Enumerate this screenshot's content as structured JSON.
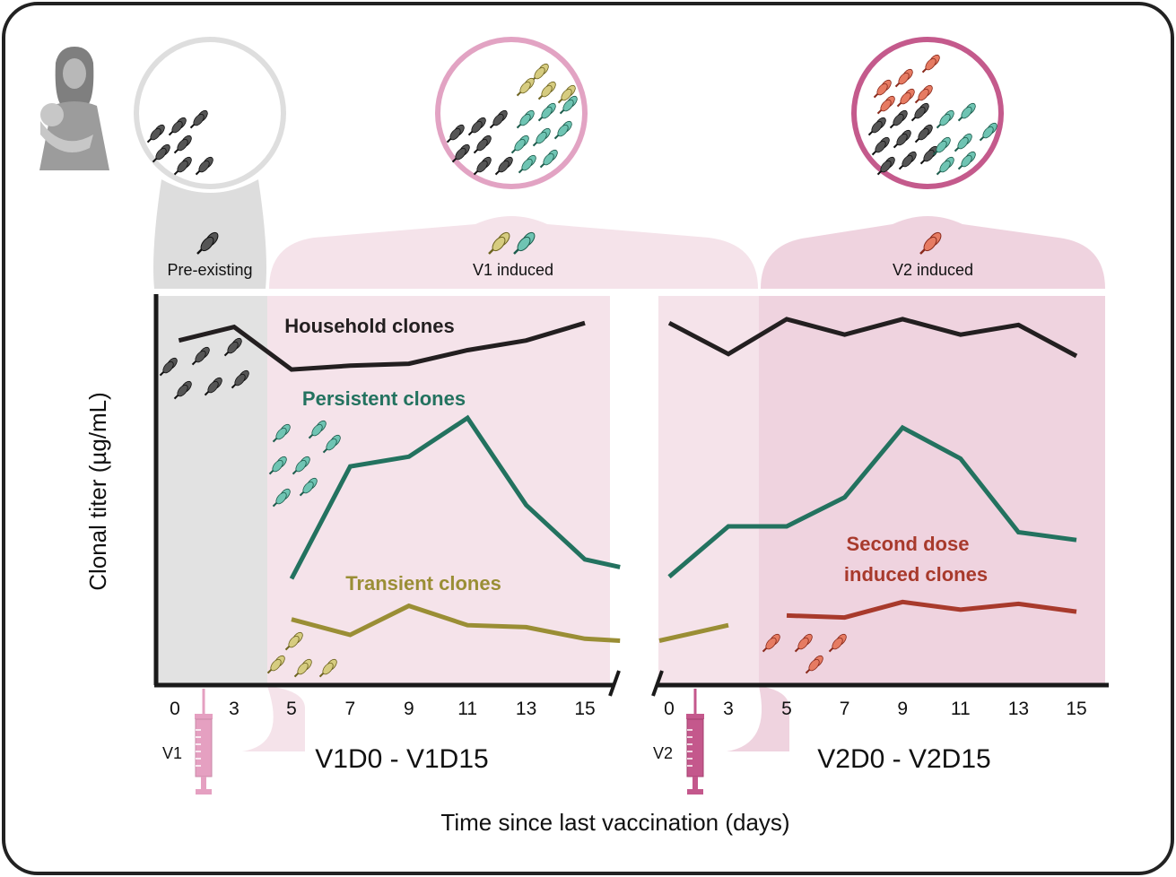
{
  "colors": {
    "household": "#231f20",
    "persistent": "#23725f",
    "transient": "#9a8e35",
    "second_dose": "#a83a2c",
    "v1_bg": "#f5e3ea",
    "v2_bg": "#efd3df",
    "pre_bg": "#e2e2e2",
    "v1_syringe": "#e5a0c1",
    "v2_syringe": "#c4588c",
    "circle_pre": "#dedede",
    "circle_v1": "#e2a3c3",
    "circle_v2": "#c45a8c"
  },
  "icons": {
    "mother": "mother-with-baby-icon",
    "syringe": "syringe-icon",
    "antibody": "antibody-icon",
    "axis_break": "axis-break-icon"
  },
  "labels": {
    "pre_existing": "Pre-existing",
    "v1_induced": "V1 induced",
    "v2_induced": "V2 induced",
    "household": "Household clones",
    "persistent": "Persistent clones",
    "transient": "Transient clones",
    "second_dose_1": "Second dose",
    "second_dose_2": "induced clones",
    "period1": "V1D0 - V1D15",
    "period2": "V2D0 - V2D15",
    "v1": "V1",
    "v2": "V2"
  },
  "chart_data": {
    "type": "line",
    "xlabel": "Time since last vaccination (days)",
    "ylabel": "Clonal titer (µg/mL)",
    "panels": [
      {
        "period": "V1D0 - V1D15",
        "vaccination": "V1",
        "x_ticks": [
          0,
          3,
          5,
          7,
          9,
          11,
          13,
          15
        ],
        "series": [
          {
            "name": "Household clones",
            "points": [
              [
                0.2,
                88.5
              ],
              [
                3,
                92
              ],
              [
                5,
                81
              ],
              [
                7,
                82
              ],
              [
                9,
                82.5
              ],
              [
                11,
                86
              ],
              [
                13,
                88.5
              ],
              [
                15,
                93
              ]
            ]
          },
          {
            "name": "Persistent clones",
            "points": [
              [
                5,
                27
              ],
              [
                7,
                56
              ],
              [
                9,
                58.5
              ],
              [
                11,
                68.5
              ],
              [
                13,
                46
              ],
              [
                15,
                32
              ],
              [
                16.2,
                30
              ]
            ]
          },
          {
            "name": "Transient clones",
            "points": [
              [
                5,
                16.5
              ],
              [
                7,
                12.5
              ],
              [
                9,
                20
              ],
              [
                11,
                15
              ],
              [
                13,
                14.5
              ],
              [
                15,
                11.5
              ],
              [
                16.2,
                11
              ]
            ]
          }
        ]
      },
      {
        "period": "V2D0 - V2D15",
        "vaccination": "V2",
        "x_ticks": [
          0,
          3,
          5,
          7,
          9,
          11,
          13,
          15
        ],
        "series": [
          {
            "name": "Household clones",
            "points": [
              [
                0,
                93
              ],
              [
                3,
                85
              ],
              [
                5,
                94
              ],
              [
                7,
                90
              ],
              [
                9,
                94
              ],
              [
                11,
                90
              ],
              [
                13,
                92.5
              ],
              [
                15,
                84.5
              ]
            ]
          },
          {
            "name": "Persistent clones",
            "points": [
              [
                0,
                27.5
              ],
              [
                3,
                40.5
              ],
              [
                5,
                40.5
              ],
              [
                7,
                48
              ],
              [
                9,
                66
              ],
              [
                11,
                58
              ],
              [
                13,
                39
              ],
              [
                15,
                37
              ]
            ]
          },
          {
            "name": "Transient clones",
            "points": [
              [
                -0.5,
                11
              ],
              [
                3,
                15
              ]
            ]
          },
          {
            "name": "Second dose induced clones",
            "points": [
              [
                5,
                17.5
              ],
              [
                7,
                17
              ],
              [
                9,
                21
              ],
              [
                11,
                19
              ],
              [
                13,
                20.5
              ],
              [
                15,
                18.5
              ]
            ]
          }
        ]
      }
    ]
  }
}
